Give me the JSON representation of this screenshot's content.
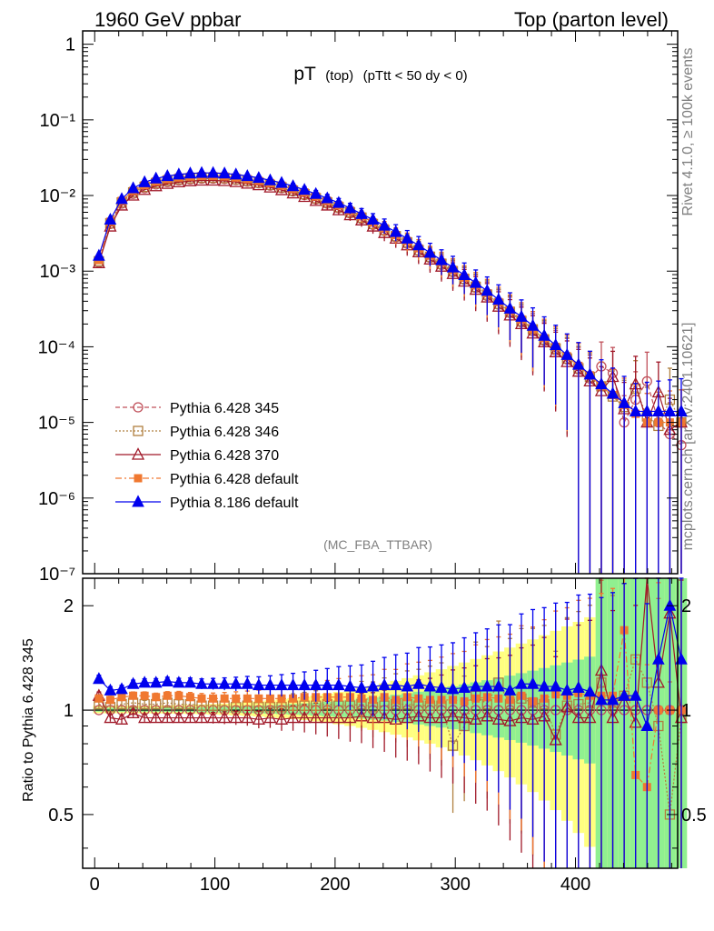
{
  "header": {
    "left": "1960 GeV ppbar",
    "right": "Top (parton level)"
  },
  "side_labels": {
    "rivet": "Rivet 4.1.0, ≥ 100k events",
    "mcplots": "mcplots.cern.ch [arXiv:2401.10621]"
  },
  "chart_data": [
    {
      "type": "line",
      "panel": "main",
      "title_main": "pT",
      "title_sub1": "(top)",
      "title_sub2": "(pTtt < 50 dy < 0)",
      "analysis_label": "(MC_FBA_TTBAR)",
      "yscale": "log",
      "ylim": [
        1e-07,
        1.5
      ],
      "xlim": [
        -10,
        485
      ],
      "ytick_labels": [
        "1",
        "10⁻¹",
        "10⁻²",
        "10⁻³",
        "10⁻⁴",
        "10⁻⁵",
        "10⁻⁶",
        "10⁻⁷"
      ],
      "legend_placement": "lower-left",
      "series": [
        {
          "name": "Pythia 6.428 345",
          "color": "#c0505a",
          "marker": "circle-open",
          "line": "dashed",
          "values": [
            0.0013,
            0.0042,
            0.0078,
            0.0105,
            0.0125,
            0.014,
            0.015,
            0.0158,
            0.0163,
            0.0167,
            0.0167,
            0.0165,
            0.016,
            0.0152,
            0.0145,
            0.0135,
            0.0125,
            0.0113,
            0.0101,
            0.0089,
            0.0078,
            0.0068,
            0.0058,
            0.0049,
            0.0041,
            0.0034,
            0.0028,
            0.0023,
            0.00185,
            0.0015,
            0.00121,
            0.00097,
            0.00077,
            0.0006,
            0.00047,
            0.00036,
            0.00028,
            0.00021,
            0.00016,
            0.00012,
            9e-05,
            6.8e-05,
            5e-05,
            3.8e-05,
            5.5e-05,
            4.5e-05,
            1e-05,
            2e-05,
            3.5e-05,
            1e-05,
            7e-06,
            5e-06
          ]
        },
        {
          "name": "Pythia 6.428 346",
          "color": "#b08040",
          "marker": "square-open",
          "line": "dotted",
          "values": [
            0.00135,
            0.0043,
            0.0081,
            0.011,
            0.013,
            0.0146,
            0.0157,
            0.0164,
            0.0169,
            0.0172,
            0.0172,
            0.017,
            0.0164,
            0.0156,
            0.0148,
            0.0138,
            0.0128,
            0.0116,
            0.0104,
            0.0092,
            0.0081,
            0.007,
            0.006,
            0.0051,
            0.0042,
            0.0035,
            0.0029,
            0.0024,
            0.0019,
            0.00155,
            0.00125,
            0.001,
            0.00079,
            0.00062,
            0.00049,
            0.00037,
            0.00029,
            0.00022,
            0.00017,
            0.000125,
            9.5e-05,
            7e-05,
            5.2e-05,
            4e-05,
            3e-05,
            2.2e-05,
            1.6e-05,
            2.8e-05,
            1.2e-05,
            9e-06,
            2e-05,
            1e-05
          ]
        },
        {
          "name": "Pythia 6.428 370",
          "color": "#a01828",
          "marker": "triangle-open",
          "line": "solid",
          "values": [
            0.00128,
            0.0039,
            0.0074,
            0.01,
            0.0119,
            0.0133,
            0.0143,
            0.015,
            0.0155,
            0.0158,
            0.0158,
            0.0156,
            0.0151,
            0.0144,
            0.0137,
            0.0128,
            0.0118,
            0.0107,
            0.0096,
            0.0085,
            0.0074,
            0.0064,
            0.0055,
            0.0047,
            0.0039,
            0.0032,
            0.0027,
            0.0022,
            0.00178,
            0.00143,
            0.00115,
            0.00092,
            0.00073,
            0.00057,
            0.00045,
            0.00034,
            0.00026,
            0.0002,
            0.00015,
            0.000115,
            8.5e-05,
            6.3e-05,
            4.7e-05,
            3.5e-05,
            2.6e-05,
            4e-05,
            1.5e-05,
            3.2e-05,
            1e-05,
            2.5e-05,
            8e-06,
            1e-05
          ]
        },
        {
          "name": "Pythia 6.428 default",
          "color": "#f07830",
          "marker": "square-filled",
          "line": "dashdot",
          "values": [
            0.0014,
            0.0045,
            0.0085,
            0.0115,
            0.0137,
            0.0153,
            0.0165,
            0.0173,
            0.0178,
            0.0181,
            0.0181,
            0.0179,
            0.0173,
            0.0165,
            0.0156,
            0.0146,
            0.0135,
            0.0122,
            0.011,
            0.0097,
            0.0085,
            0.0074,
            0.0063,
            0.0053,
            0.0044,
            0.0037,
            0.003,
            0.0025,
            0.002,
            0.0016,
            0.0013,
            0.00104,
            0.00082,
            0.00065,
            0.00051,
            0.00039,
            0.0003,
            0.00023,
            0.00017,
            0.00013,
            0.0001,
            7.5e-05,
            5.6e-05,
            4.2e-05,
            3e-05,
            2.3e-05,
            1.7e-05,
            1.3e-05,
            1e-05,
            1e-05,
            1e-05,
            1e-05
          ]
        },
        {
          "name": "Pythia 8.186 default",
          "color": "#0000ee",
          "marker": "triangle-filled",
          "line": "solid",
          "values": [
            0.0016,
            0.0048,
            0.009,
            0.0125,
            0.015,
            0.0168,
            0.0181,
            0.019,
            0.0196,
            0.0199,
            0.0199,
            0.0196,
            0.019,
            0.0181,
            0.0171,
            0.0159,
            0.0147,
            0.0133,
            0.0119,
            0.0105,
            0.0092,
            0.008,
            0.0068,
            0.0057,
            0.0048,
            0.004,
            0.0033,
            0.0027,
            0.0022,
            0.00175,
            0.0014,
            0.00112,
            0.00089,
            0.0007,
            0.00055,
            0.00042,
            0.00032,
            0.00025,
            0.00019,
            0.00014,
            0.000105,
            7.8e-05,
            5.8e-05,
            4.3e-05,
            3.2e-05,
            2.4e-05,
            1.8e-05,
            1.4e-05,
            1.4e-05,
            1.4e-05,
            1.4e-05,
            1.4e-05
          ]
        }
      ]
    },
    {
      "type": "line",
      "panel": "ratio",
      "ylabel": "Ratio to Pythia 6.428 345",
      "yscale": "log",
      "ylim": [
        0.35,
        2.4
      ],
      "xlim": [
        -10,
        485
      ],
      "xticks": [
        0,
        100,
        200,
        300,
        400
      ],
      "xtick_labels": [
        "0",
        "100",
        "200",
        "300",
        "400"
      ],
      "yticks": [
        0.5,
        1,
        2
      ],
      "ytick_labels": [
        "0.5",
        "1",
        "2"
      ],
      "series": [
        {
          "name": "Pythia 6.428 346",
          "color": "#b08040",
          "values": [
            1.04,
            1.02,
            1.04,
            1.05,
            1.04,
            1.04,
            1.05,
            1.04,
            1.04,
            1.03,
            1.03,
            1.03,
            1.02,
            1.03,
            1.02,
            1.02,
            1.02,
            1.03,
            1.03,
            1.03,
            1.04,
            1.03,
            1.03,
            1.04,
            1.02,
            1.03,
            1.04,
            1.04,
            1.03,
            1.03,
            1.03,
            0.79,
            0.9,
            1.1,
            1.04,
            1.2,
            1.04,
            1.08,
            1.05,
            1.04,
            0.85,
            1.03,
            1.04,
            1.05,
            1.2,
            1.05,
            1.1,
            1.4,
            1.2,
            0.9,
            0.5,
            0.95
          ]
        },
        {
          "name": "Pythia 6.428 370",
          "color": "#a01828",
          "values": [
            1.1,
            0.95,
            0.94,
            0.98,
            0.95,
            0.95,
            0.95,
            0.95,
            0.95,
            0.95,
            0.95,
            0.95,
            0.95,
            0.95,
            0.94,
            0.95,
            0.94,
            0.95,
            0.95,
            0.95,
            0.95,
            0.95,
            0.95,
            0.96,
            0.95,
            0.95,
            0.94,
            0.95,
            0.96,
            0.95,
            0.95,
            0.96,
            0.95,
            0.94,
            0.96,
            0.94,
            0.93,
            0.95,
            0.94,
            0.96,
            0.82,
            1.02,
            0.95,
            0.95,
            1.3,
            0.95,
            1.1,
            0.92,
            2.5,
            1.2,
            1.9,
            0.95
          ]
        },
        {
          "name": "Pythia 6.428 default",
          "color": "#f07830",
          "values": [
            1.08,
            1.07,
            1.09,
            1.1,
            1.1,
            1.09,
            1.1,
            1.1,
            1.09,
            1.08,
            1.08,
            1.08,
            1.08,
            1.08,
            1.08,
            1.08,
            1.08,
            1.08,
            1.09,
            1.09,
            1.09,
            1.09,
            1.09,
            1.08,
            1.07,
            1.09,
            1.07,
            1.09,
            1.08,
            1.07,
            1.07,
            1.07,
            1.06,
            1.08,
            1.09,
            1.08,
            1.07,
            1.1,
            1.06,
            1.08,
            1.11,
            1.1,
            1.12,
            1.1,
            1.1,
            1.1,
            1.7,
            0.65,
            0.6,
            1.0,
            1.0,
            1.0
          ]
        },
        {
          "name": "Pythia 8.186 default",
          "color": "#0000ee",
          "values": [
            1.23,
            1.14,
            1.15,
            1.19,
            1.2,
            1.2,
            1.21,
            1.2,
            1.2,
            1.19,
            1.19,
            1.19,
            1.19,
            1.19,
            1.18,
            1.18,
            1.18,
            1.18,
            1.18,
            1.18,
            1.18,
            1.18,
            1.17,
            1.16,
            1.17,
            1.18,
            1.18,
            1.17,
            1.19,
            1.17,
            1.16,
            1.15,
            1.16,
            1.17,
            1.17,
            1.17,
            1.14,
            1.19,
            1.19,
            1.17,
            1.17,
            1.14,
            1.16,
            1.13,
            1.07,
            1.07,
            1.1,
            1.1,
            0.9,
            1.4,
            2.0,
            1.4
          ]
        }
      ]
    }
  ]
}
